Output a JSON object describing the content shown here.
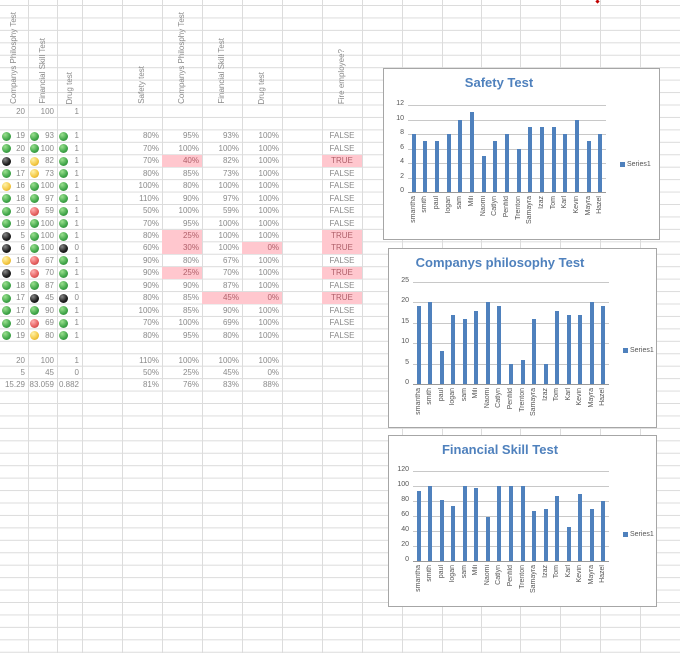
{
  "sheet": {
    "left_headers": [
      "Companys Philosphy Test",
      "Financial Skill Test",
      "Drug test"
    ],
    "right_headers": [
      "Safety test",
      "Companys Philosphy Test",
      "Financial Skill Test",
      "Drug test",
      "Fire employee?"
    ],
    "max_row_left": [
      "20",
      "100",
      "1"
    ],
    "rows": [
      {
        "cp": "19",
        "cp_icon": "green",
        "fs": "93",
        "fs_icon": "green",
        "dt": "1",
        "dt_icon": "green",
        "safety": "80%",
        "cpp": "95%",
        "fsp": "93%",
        "dtp": "100%",
        "fire": "FALSE",
        "hl": []
      },
      {
        "cp": "20",
        "cp_icon": "green",
        "fs": "100",
        "fs_icon": "green",
        "dt": "1",
        "dt_icon": "green",
        "safety": "70%",
        "cpp": "100%",
        "fsp": "100%",
        "dtp": "100%",
        "fire": "FALSE",
        "hl": []
      },
      {
        "cp": "8",
        "cp_icon": "black",
        "fs": "82",
        "fs_icon": "yellow",
        "dt": "1",
        "dt_icon": "green",
        "safety": "70%",
        "cpp": "40%",
        "fsp": "82%",
        "dtp": "100%",
        "fire": "TRUE",
        "hl": [
          "cpp",
          "fire"
        ]
      },
      {
        "cp": "17",
        "cp_icon": "green",
        "fs": "73",
        "fs_icon": "yellow",
        "dt": "1",
        "dt_icon": "green",
        "safety": "80%",
        "cpp": "85%",
        "fsp": "73%",
        "dtp": "100%",
        "fire": "FALSE",
        "hl": []
      },
      {
        "cp": "16",
        "cp_icon": "yellow",
        "fs": "100",
        "fs_icon": "green",
        "dt": "1",
        "dt_icon": "green",
        "safety": "100%",
        "cpp": "80%",
        "fsp": "100%",
        "dtp": "100%",
        "fire": "FALSE",
        "hl": []
      },
      {
        "cp": "18",
        "cp_icon": "green",
        "fs": "97",
        "fs_icon": "green",
        "dt": "1",
        "dt_icon": "green",
        "safety": "110%",
        "cpp": "90%",
        "fsp": "97%",
        "dtp": "100%",
        "fire": "FALSE",
        "hl": []
      },
      {
        "cp": "20",
        "cp_icon": "green",
        "fs": "59",
        "fs_icon": "red",
        "dt": "1",
        "dt_icon": "green",
        "safety": "50%",
        "cpp": "100%",
        "fsp": "59%",
        "dtp": "100%",
        "fire": "FALSE",
        "hl": []
      },
      {
        "cp": "19",
        "cp_icon": "green",
        "fs": "100",
        "fs_icon": "green",
        "dt": "1",
        "dt_icon": "green",
        "safety": "70%",
        "cpp": "95%",
        "fsp": "100%",
        "dtp": "100%",
        "fire": "FALSE",
        "hl": []
      },
      {
        "cp": "5",
        "cp_icon": "black",
        "fs": "100",
        "fs_icon": "green",
        "dt": "1",
        "dt_icon": "green",
        "safety": "80%",
        "cpp": "25%",
        "fsp": "100%",
        "dtp": "100%",
        "fire": "TRUE",
        "hl": [
          "cpp",
          "fire"
        ]
      },
      {
        "cp": "6",
        "cp_icon": "black",
        "fs": "100",
        "fs_icon": "green",
        "dt": "0",
        "dt_icon": "black",
        "safety": "60%",
        "cpp": "30%",
        "fsp": "100%",
        "dtp": "0%",
        "fire": "TRUE",
        "hl": [
          "cpp",
          "dtp",
          "fire"
        ]
      },
      {
        "cp": "16",
        "cp_icon": "yellow",
        "fs": "67",
        "fs_icon": "red",
        "dt": "1",
        "dt_icon": "green",
        "safety": "90%",
        "cpp": "80%",
        "fsp": "67%",
        "dtp": "100%",
        "fire": "FALSE",
        "hl": []
      },
      {
        "cp": "5",
        "cp_icon": "black",
        "fs": "70",
        "fs_icon": "red",
        "dt": "1",
        "dt_icon": "green",
        "safety": "90%",
        "cpp": "25%",
        "fsp": "70%",
        "dtp": "100%",
        "fire": "TRUE",
        "hl": [
          "cpp",
          "fire"
        ]
      },
      {
        "cp": "18",
        "cp_icon": "green",
        "fs": "87",
        "fs_icon": "green",
        "dt": "1",
        "dt_icon": "green",
        "safety": "90%",
        "cpp": "90%",
        "fsp": "87%",
        "dtp": "100%",
        "fire": "FALSE",
        "hl": []
      },
      {
        "cp": "17",
        "cp_icon": "green",
        "fs": "45",
        "fs_icon": "black",
        "dt": "0",
        "dt_icon": "black",
        "safety": "80%",
        "cpp": "85%",
        "fsp": "45%",
        "dtp": "0%",
        "fire": "TRUE",
        "hl": [
          "fsp",
          "dtp",
          "fire"
        ]
      },
      {
        "cp": "17",
        "cp_icon": "green",
        "fs": "90",
        "fs_icon": "green",
        "dt": "1",
        "dt_icon": "green",
        "safety": "100%",
        "cpp": "85%",
        "fsp": "90%",
        "dtp": "100%",
        "fire": "FALSE",
        "hl": []
      },
      {
        "cp": "20",
        "cp_icon": "green",
        "fs": "69",
        "fs_icon": "red",
        "dt": "1",
        "dt_icon": "green",
        "safety": "70%",
        "cpp": "100%",
        "fsp": "69%",
        "dtp": "100%",
        "fire": "FALSE",
        "hl": []
      },
      {
        "cp": "19",
        "cp_icon": "green",
        "fs": "80",
        "fs_icon": "yellow",
        "dt": "1",
        "dt_icon": "green",
        "safety": "80%",
        "cpp": "95%",
        "fsp": "80%",
        "dtp": "100%",
        "fire": "FALSE",
        "hl": []
      }
    ],
    "summary": [
      {
        "cp": "20",
        "fs": "100",
        "dt": "1",
        "safety": "110%",
        "cpp": "100%",
        "fsp": "100%",
        "dtp": "100%"
      },
      {
        "cp": "5",
        "fs": "45",
        "dt": "0",
        "safety": "50%",
        "cpp": "25%",
        "fsp": "45%",
        "dtp": "0%"
      },
      {
        "cp": "15.29",
        "fs": "83.059",
        "dt": "0.882",
        "safety": "81%",
        "cpp": "76%",
        "fsp": "83%",
        "dtp": "88%"
      }
    ]
  },
  "colors": {
    "bar": "#4f81bd",
    "title": "#4f81bd",
    "highlight_fill": "#ffc7ce",
    "highlight_text": "#b0606a",
    "green": "#3fa548",
    "yellow": "#f3c640",
    "red": "#e45d5d",
    "black": "#111111"
  },
  "chart_data": [
    {
      "type": "bar",
      "title": "Safety Test",
      "categories": [
        "smantha",
        "smith",
        "paul",
        "logan",
        "sam",
        "Mili",
        "Naomi",
        "Catlyn",
        "Penfild",
        "Trenton",
        "Samayra",
        "Izaz",
        "Tom",
        "Karl",
        "Kevin",
        "Mayra",
        "Hazel"
      ],
      "series": [
        {
          "name": "Series1",
          "values": [
            8,
            7,
            7,
            8,
            10,
            11,
            5,
            7,
            8,
            6,
            9,
            9,
            9,
            8,
            10,
            7,
            8
          ]
        }
      ],
      "yticks": [
        "0",
        "2",
        "4",
        "6",
        "8",
        "10",
        "12"
      ],
      "ylim": [
        0,
        12
      ],
      "xlabel": "",
      "ylabel": "",
      "grid": true,
      "legend_position": "right"
    },
    {
      "type": "bar",
      "title": "Companys philosophy Test",
      "categories": [
        "smantha",
        "smith",
        "paul",
        "logan",
        "sam",
        "Mili",
        "Naomi",
        "Catlyn",
        "Penfild",
        "Trenton",
        "Samayra",
        "Izaz",
        "Tom",
        "Karl",
        "Kevin",
        "Mayra",
        "Hazel"
      ],
      "series": [
        {
          "name": "Series1",
          "values": [
            19,
            20,
            8,
            17,
            16,
            18,
            20,
            19,
            5,
            6,
            16,
            5,
            18,
            17,
            17,
            20,
            19
          ]
        }
      ],
      "yticks": [
        "0",
        "5",
        "10",
        "15",
        "20",
        "25"
      ],
      "ylim": [
        0,
        25
      ],
      "xlabel": "",
      "ylabel": "",
      "grid": true,
      "legend_position": "right"
    },
    {
      "type": "bar",
      "title": "Financial Skill Test",
      "categories": [
        "smantha",
        "smith",
        "paul",
        "logan",
        "sam",
        "Mili",
        "Naomi",
        "Catlyn",
        "Penfild",
        "Trenton",
        "Samayra",
        "Izaz",
        "Tom",
        "Karl",
        "Kevin",
        "Mayra",
        "Hazel"
      ],
      "series": [
        {
          "name": "Series1",
          "values": [
            93,
            100,
            82,
            73,
            100,
            97,
            59,
            100,
            100,
            100,
            67,
            70,
            87,
            45,
            90,
            69,
            80
          ]
        }
      ],
      "yticks": [
        "0",
        "20",
        "40",
        "60",
        "80",
        "100",
        "120"
      ],
      "ylim": [
        0,
        120
      ],
      "xlabel": "",
      "ylabel": "",
      "grid": true,
      "legend_position": "right"
    }
  ]
}
